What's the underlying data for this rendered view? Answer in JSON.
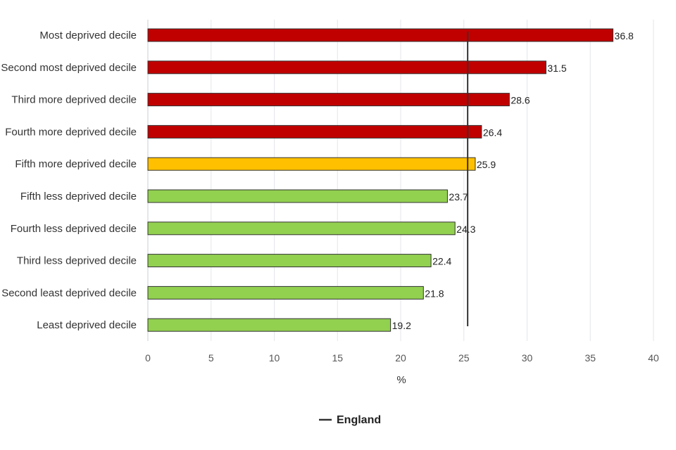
{
  "chart_data": {
    "type": "bar",
    "orientation": "horizontal",
    "categories": [
      "Most deprived decile",
      "Second most deprived decile",
      "Third more deprived decile",
      "Fourth more deprived decile",
      "Fifth more deprived decile",
      "Fifth less deprived decile",
      "Fourth less deprived decile",
      "Third less deprived decile",
      "Second least deprived decile",
      "Least deprived decile"
    ],
    "values": [
      36.8,
      31.5,
      28.6,
      26.4,
      25.9,
      23.7,
      24.3,
      22.4,
      21.8,
      19.2
    ],
    "value_labels": [
      "36.8",
      "31.5",
      "28.6",
      "26.4",
      "25.9",
      "23.7",
      "24.3",
      "22.4",
      "21.8",
      "19.2"
    ],
    "bar_colors": [
      "#c00000",
      "#c00000",
      "#c00000",
      "#c00000",
      "#ffc000",
      "#92d050",
      "#92d050",
      "#92d050",
      "#92d050",
      "#92d050"
    ],
    "xlabel": "%",
    "xlim": [
      0,
      40
    ],
    "xticks": [
      0,
      5,
      10,
      15,
      20,
      25,
      30,
      35,
      40
    ],
    "xtick_labels": [
      "0",
      "5",
      "10",
      "15",
      "20",
      "25",
      "30",
      "35",
      "40"
    ],
    "grid": "vertical",
    "reference_line": {
      "name": "England",
      "value": 25.3,
      "color": "#333333"
    },
    "legend": {
      "position": "bottom-center",
      "entries": [
        "England"
      ]
    }
  }
}
